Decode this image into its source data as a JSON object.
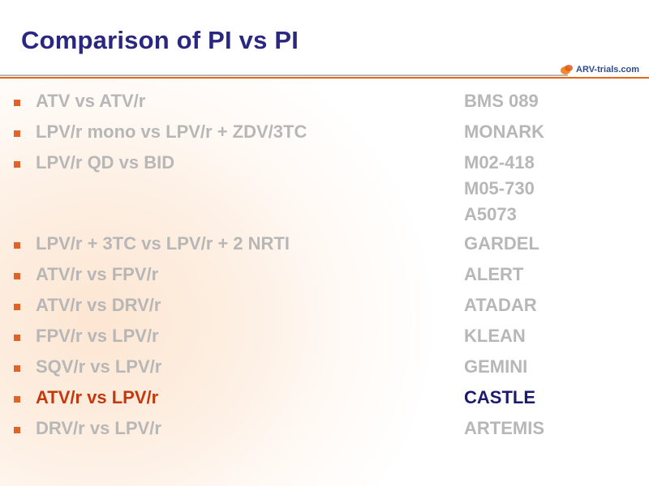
{
  "slide": {
    "title": "Comparison of PI vs PI",
    "logo_text": "ARV-trials.com",
    "colors": {
      "title": "#2a2780",
      "bullet": "#e0632a",
      "muted_text": "#b7b7b7",
      "highlight_drug": "#c4380e",
      "highlight_trial": "#1c1a6e",
      "rule": "#e06a1a"
    }
  },
  "rows": [
    {
      "drug": "ATV vs ATV/r",
      "trial": "BMS 089"
    },
    {
      "drug": "LPV/r mono vs LPV/r + ZDV/3TC",
      "trial": "MONARK"
    },
    {
      "drug": "LPV/r QD vs BID",
      "trial": "M02-418",
      "extra_trials": [
        "M05-730",
        "A5073"
      ]
    },
    {
      "drug": "LPV/r + 3TC vs LPV/r + 2 NRTI",
      "trial": "GARDEL"
    },
    {
      "drug": "ATV/r vs FPV/r",
      "trial": "ALERT"
    },
    {
      "drug": "ATV/r vs DRV/r",
      "trial": "ATADAR"
    },
    {
      "drug": "FPV/r vs LPV/r",
      "trial": "KLEAN"
    },
    {
      "drug": "SQV/r vs LPV/r",
      "trial": "GEMINI"
    },
    {
      "drug": "ATV/r vs LPV/r",
      "trial": "CASTLE"
    },
    {
      "drug": "DRV/r vs LPV/r",
      "trial": "ARTEMIS"
    }
  ]
}
